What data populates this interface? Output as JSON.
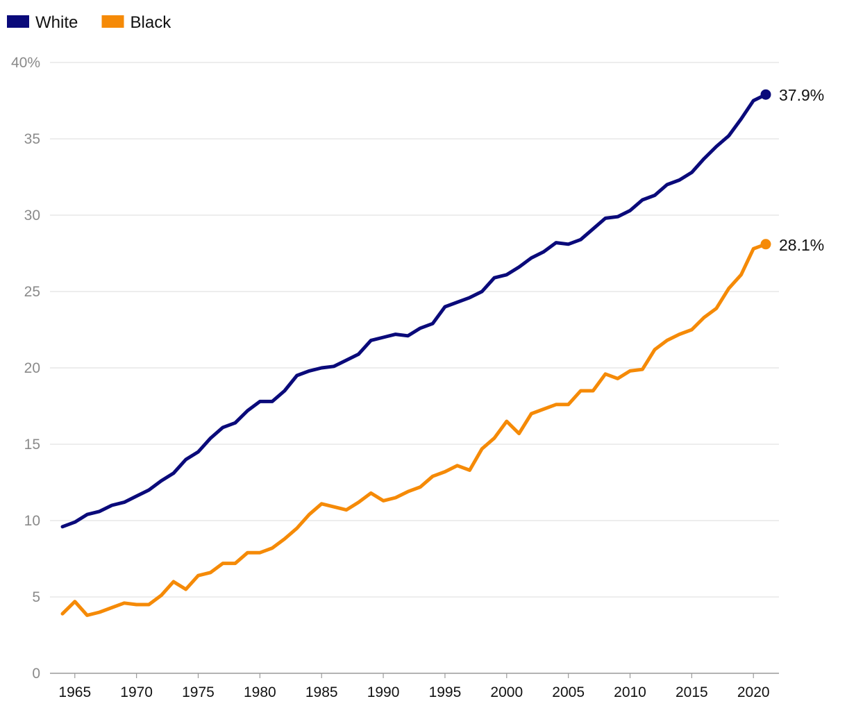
{
  "chart_data": {
    "type": "line",
    "title": "",
    "xlabel": "",
    "ylabel": "",
    "ylim": [
      0,
      40
    ],
    "xlim": [
      1964,
      2021
    ],
    "y_ticks": [
      {
        "value": 0,
        "label": "0"
      },
      {
        "value": 5,
        "label": "5"
      },
      {
        "value": 10,
        "label": "10"
      },
      {
        "value": 15,
        "label": "15"
      },
      {
        "value": 20,
        "label": "20"
      },
      {
        "value": 25,
        "label": "25"
      },
      {
        "value": 30,
        "label": "30"
      },
      {
        "value": 35,
        "label": "35"
      },
      {
        "value": 40,
        "label": "40%"
      }
    ],
    "x_ticks": [
      {
        "value": 1965,
        "label": "1965"
      },
      {
        "value": 1970,
        "label": "1970"
      },
      {
        "value": 1975,
        "label": "1975"
      },
      {
        "value": 1980,
        "label": "1980"
      },
      {
        "value": 1985,
        "label": "1985"
      },
      {
        "value": 1990,
        "label": "1990"
      },
      {
        "value": 1995,
        "label": "1995"
      },
      {
        "value": 2000,
        "label": "2000"
      },
      {
        "value": 2005,
        "label": "2005"
      },
      {
        "value": 2010,
        "label": "2010"
      },
      {
        "value": 2015,
        "label": "2015"
      },
      {
        "value": 2020,
        "label": "2020"
      }
    ],
    "grid": true,
    "legend_position": "top-left",
    "x": [
      1964,
      1965,
      1966,
      1967,
      1968,
      1969,
      1970,
      1971,
      1972,
      1973,
      1974,
      1975,
      1976,
      1977,
      1978,
      1979,
      1980,
      1981,
      1982,
      1983,
      1984,
      1985,
      1986,
      1987,
      1988,
      1989,
      1990,
      1991,
      1992,
      1993,
      1994,
      1995,
      1996,
      1997,
      1998,
      1999,
      2000,
      2001,
      2002,
      2003,
      2004,
      2005,
      2006,
      2007,
      2008,
      2009,
      2010,
      2011,
      2012,
      2013,
      2014,
      2015,
      2016,
      2017,
      2018,
      2019,
      2020,
      2021
    ],
    "series": [
      {
        "name": "White",
        "color": "#0a0a7a",
        "end_label": "37.9%",
        "values": [
          9.6,
          9.9,
          10.4,
          10.6,
          11.0,
          11.2,
          11.6,
          12.0,
          12.6,
          13.1,
          14.0,
          14.5,
          15.4,
          16.1,
          16.4,
          17.2,
          17.8,
          17.8,
          18.5,
          19.5,
          19.8,
          20.0,
          20.1,
          20.5,
          20.9,
          21.8,
          22.0,
          22.2,
          22.1,
          22.6,
          22.9,
          24.0,
          24.3,
          24.6,
          25.0,
          25.9,
          26.1,
          26.6,
          27.2,
          27.6,
          28.2,
          28.1,
          28.4,
          29.1,
          29.8,
          29.9,
          30.3,
          31.0,
          31.3,
          32.0,
          32.3,
          32.8,
          33.7,
          34.5,
          35.2,
          36.3,
          37.5,
          37.9
        ]
      },
      {
        "name": "Black",
        "color": "#f58a07",
        "end_label": "28.1%",
        "values": [
          3.9,
          4.7,
          3.8,
          4.0,
          4.3,
          4.6,
          4.5,
          4.5,
          5.1,
          6.0,
          5.5,
          6.4,
          6.6,
          7.2,
          7.2,
          7.9,
          7.9,
          8.2,
          8.8,
          9.5,
          10.4,
          11.1,
          10.9,
          10.7,
          11.2,
          11.8,
          11.3,
          11.5,
          11.9,
          12.2,
          12.9,
          13.2,
          13.6,
          13.3,
          14.7,
          15.4,
          16.5,
          15.7,
          17.0,
          17.3,
          17.6,
          17.6,
          18.5,
          18.5,
          19.6,
          19.3,
          19.8,
          19.9,
          21.2,
          21.8,
          22.2,
          22.5,
          23.3,
          23.9,
          25.2,
          26.1,
          27.8,
          28.1
        ]
      }
    ]
  }
}
